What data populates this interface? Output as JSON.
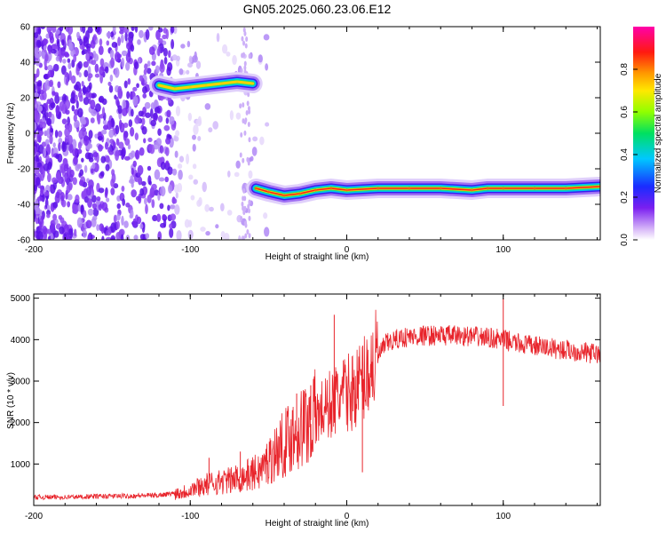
{
  "title": "GN05.2025.060.23.06.E12",
  "chart_data": [
    {
      "type": "heatmap",
      "title": "",
      "xlabel": "Height of straight line (km)",
      "ylabel": "Frequency (Hz)",
      "xlim": [
        -200,
        162
      ],
      "ylim": [
        -60,
        60
      ],
      "x_ticks": [
        "-200",
        "-100",
        "0",
        "100"
      ],
      "y_ticks": [
        "60",
        "40",
        "20",
        "0",
        "-20",
        "-40",
        "-60"
      ],
      "colorbar": {
        "label": "Normalized spectral amplitude",
        "range": [
          0,
          1
        ],
        "ticks": [
          "0.0",
          "0.2",
          "0.4",
          "0.6",
          "0.8"
        ]
      },
      "ridge": [
        {
          "x": -120,
          "y": 27
        },
        {
          "x": -110,
          "y": 25
        },
        {
          "x": -100,
          "y": 26
        },
        {
          "x": -90,
          "y": 27
        },
        {
          "x": -80,
          "y": 28
        },
        {
          "x": -70,
          "y": 29
        },
        {
          "x": -60,
          "y": 28
        },
        {
          "x": -58,
          "y": -31
        },
        {
          "x": -50,
          "y": -33
        },
        {
          "x": -40,
          "y": -35
        },
        {
          "x": -30,
          "y": -34
        },
        {
          "x": -20,
          "y": -32
        },
        {
          "x": -10,
          "y": -31
        },
        {
          "x": 0,
          "y": -32
        },
        {
          "x": 20,
          "y": -31
        },
        {
          "x": 40,
          "y": -31
        },
        {
          "x": 60,
          "y": -31
        },
        {
          "x": 80,
          "y": -32
        },
        {
          "x": 90,
          "y": -31
        },
        {
          "x": 100,
          "y": -31
        },
        {
          "x": 120,
          "y": -31
        },
        {
          "x": 140,
          "y": -31
        },
        {
          "x": 162,
          "y": -30
        }
      ],
      "noise_region_x": [
        -200,
        -100
      ]
    },
    {
      "type": "line",
      "title": "",
      "xlabel": "Height of straight line (km)",
      "ylabel": "SNR (10 * v/v)",
      "xlim": [
        -200,
        162
      ],
      "ylim": [
        0,
        5100
      ],
      "x_ticks": [
        "-200",
        "-100",
        "0",
        "100"
      ],
      "y_ticks": [
        "1000",
        "2000",
        "3000",
        "4000",
        "5000"
      ],
      "color": "#e8242b",
      "series": [
        {
          "x": [
            -200,
            -180,
            -160,
            -140,
            -120,
            -105,
            -95,
            -85,
            -75,
            -65,
            -55,
            -45,
            -35,
            -25,
            -15,
            -5,
            5,
            15,
            25,
            35,
            50,
            70,
            90,
            100,
            110,
            130,
            150,
            162
          ],
          "y": [
            200,
            200,
            220,
            230,
            250,
            320,
            450,
            550,
            600,
            700,
            850,
            1300,
            1700,
            2000,
            2300,
            2600,
            2800,
            3300,
            3900,
            4050,
            4100,
            4100,
            4050,
            4000,
            3900,
            3800,
            3700,
            3650
          ]
        }
      ],
      "spikes": [
        {
          "x": -88,
          "y": 1150
        },
        {
          "x": -68,
          "y": 1300
        },
        {
          "x": -32,
          "y": 2700
        },
        {
          "x": -23,
          "y": 2900
        },
        {
          "x": -8,
          "y": 4600
        },
        {
          "x": 10,
          "y": 800
        },
        {
          "x": 100,
          "y": 5000
        },
        {
          "x": 100,
          "y": 2400
        }
      ]
    }
  ]
}
